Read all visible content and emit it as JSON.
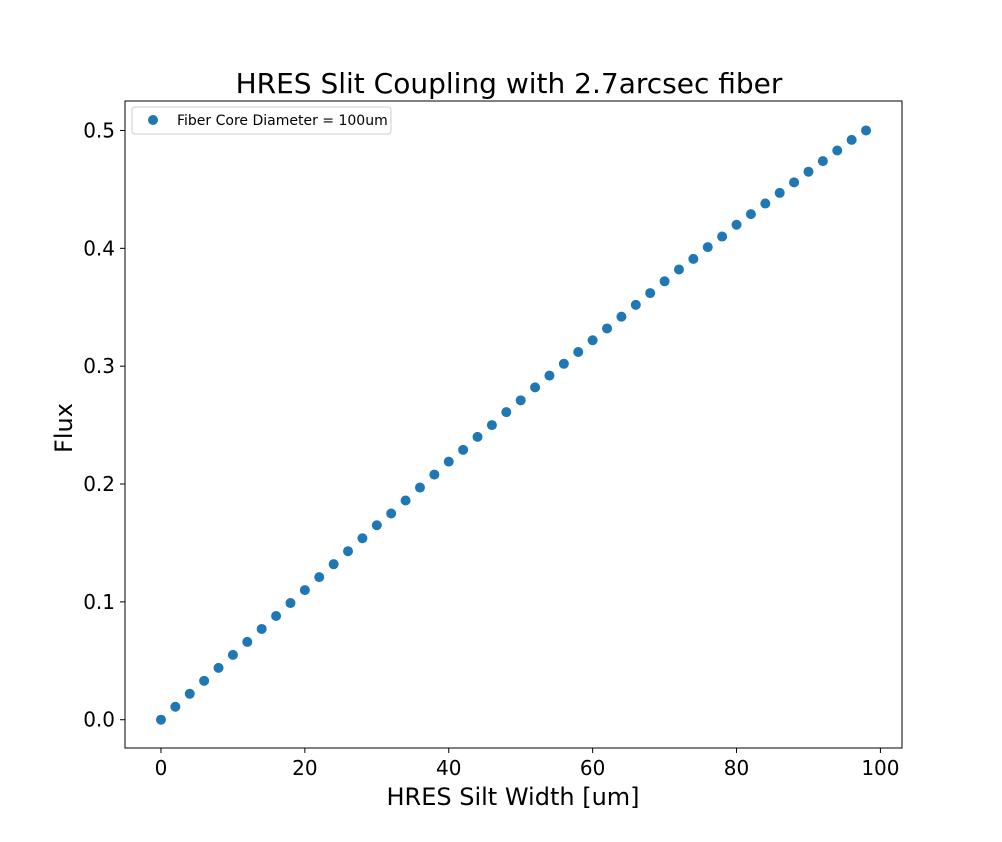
{
  "chart_data": {
    "type": "scatter",
    "title": "HRES Slit Coupling with 2.7arcsec fiber",
    "xlabel": "HRES Silt Width [um]",
    "ylabel": "Flux",
    "xlim": [
      -5,
      103
    ],
    "ylim": [
      -0.024,
      0.525
    ],
    "xticks": [
      0,
      20,
      40,
      60,
      80,
      100
    ],
    "yticks": [
      0.0,
      0.1,
      0.2,
      0.3,
      0.4,
      0.5
    ],
    "xtick_labels": [
      "0",
      "20",
      "40",
      "60",
      "80",
      "100"
    ],
    "ytick_labels": [
      "0.0",
      "0.1",
      "0.2",
      "0.3",
      "0.4",
      "0.5"
    ],
    "grid": false,
    "legend_position": "top-left",
    "series": [
      {
        "name": "Fiber Core Diameter = 100um",
        "color": "#1f77b4",
        "marker": "circle",
        "x": [
          0,
          2,
          4,
          6,
          8,
          10,
          12,
          14,
          16,
          18,
          20,
          22,
          24,
          26,
          28,
          30,
          32,
          34,
          36,
          38,
          40,
          42,
          44,
          46,
          48,
          50,
          52,
          54,
          56,
          58,
          60,
          62,
          64,
          66,
          68,
          70,
          72,
          74,
          76,
          78,
          80,
          82,
          84,
          86,
          88,
          90,
          92,
          94,
          96,
          98
        ],
        "y": [
          0.0,
          0.011,
          0.022,
          0.033,
          0.044,
          0.055,
          0.066,
          0.077,
          0.088,
          0.099,
          0.11,
          0.121,
          0.132,
          0.143,
          0.154,
          0.165,
          0.175,
          0.186,
          0.197,
          0.208,
          0.219,
          0.229,
          0.24,
          0.25,
          0.261,
          0.271,
          0.282,
          0.292,
          0.302,
          0.312,
          0.322,
          0.332,
          0.342,
          0.352,
          0.362,
          0.372,
          0.382,
          0.391,
          0.401,
          0.41,
          0.42,
          0.429,
          0.438,
          0.447,
          0.456,
          0.465,
          0.474,
          0.483,
          0.492,
          0.5
        ]
      }
    ]
  }
}
